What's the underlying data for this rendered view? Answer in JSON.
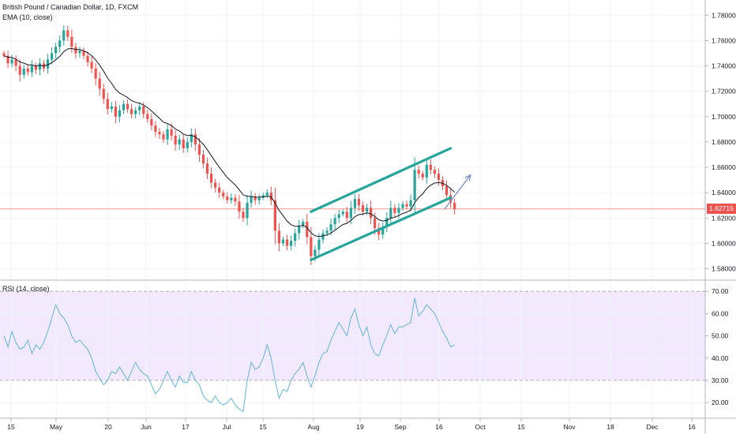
{
  "main_panel": {
    "symbol_title": "British Pound / Canadian Dollar, 1D, FXCM",
    "indicator_label": "EMA (10, close)",
    "last_price_label": "1.62715"
  },
  "rsi_panel": {
    "indicator_label": "RSI (14, close)"
  },
  "colors": {
    "bull": "#26a69a",
    "bear": "#ef5350",
    "ema": "#131722",
    "channel": "#26a69a",
    "arrow": "#7e8fc8",
    "rsi_line": "#5fb6d6",
    "rsi_band": "#f3e9ff",
    "price_line": "#ef5350"
  },
  "chart_data": [
    {
      "type": "candlestick",
      "title": "British Pound / Canadian Dollar, 1D, FXCM",
      "x_tick_labels": [
        "15",
        "May",
        "20",
        "Jun",
        "17",
        "Jul",
        "15",
        "Aug",
        "19",
        "Sep",
        "16",
        "Oct",
        "15",
        "Nov",
        "18",
        "Dec",
        "16"
      ],
      "y_tick_labels": [
        "1.78000",
        "1.76000",
        "1.74000",
        "1.72000",
        "1.70000",
        "1.68000",
        "1.66000",
        "1.64000",
        "1.62000",
        "1.60000",
        "1.58000"
      ],
      "ylim": [
        1.571,
        1.792
      ],
      "last_price": 1.62715,
      "closes": [
        1.748,
        1.742,
        1.745,
        1.74,
        1.733,
        1.738,
        1.735,
        1.74,
        1.737,
        1.742,
        1.738,
        1.745,
        1.75,
        1.755,
        1.76,
        1.768,
        1.763,
        1.755,
        1.75,
        1.752,
        1.748,
        1.743,
        1.738,
        1.73,
        1.722,
        1.714,
        1.706,
        1.708,
        1.7,
        1.705,
        1.71,
        1.706,
        1.702,
        1.705,
        1.708,
        1.702,
        1.698,
        1.693,
        1.688,
        1.686,
        1.682,
        1.69,
        1.685,
        1.678,
        1.682,
        1.675,
        1.68,
        1.686,
        1.678,
        1.67,
        1.663,
        1.655,
        1.648,
        1.644,
        1.64,
        1.637,
        1.634,
        1.636,
        1.633,
        1.625,
        1.62,
        1.632,
        1.637,
        1.634,
        1.636,
        1.638,
        1.64,
        1.634,
        1.61,
        1.6,
        1.603,
        1.598,
        1.602,
        1.608,
        1.614,
        1.617,
        1.605,
        1.59,
        1.595,
        1.603,
        1.608,
        1.61,
        1.615,
        1.62,
        1.623,
        1.625,
        1.62,
        1.628,
        1.635,
        1.63,
        1.625,
        1.628,
        1.62,
        1.612,
        1.607,
        1.613,
        1.62,
        1.628,
        1.624,
        1.628,
        1.631,
        1.629,
        1.634,
        1.658,
        1.655,
        1.652,
        1.662,
        1.658,
        1.655,
        1.65,
        1.645,
        1.638,
        1.632,
        1.627
      ],
      "series": [
        {
          "name": "EMA (10, close)",
          "note": "computed from closes"
        }
      ],
      "annotations": [
        {
          "type": "channel-upper",
          "points": [
            [
              77,
              1.625
            ],
            [
              112,
              1.675
            ]
          ]
        },
        {
          "type": "channel-lower",
          "points": [
            [
              77,
              1.587
            ],
            [
              112,
              1.636
            ]
          ]
        },
        {
          "type": "arrow",
          "points": [
            [
              110.5,
              1.627
            ],
            [
              117,
              1.654
            ]
          ]
        }
      ]
    },
    {
      "type": "line",
      "title": "RSI (14, close)",
      "y_tick_labels": [
        "70.00",
        "60.00",
        "50.00",
        "40.00",
        "30.00",
        "20.00"
      ],
      "ylim": [
        13,
        75
      ],
      "band": [
        30,
        70
      ],
      "series": [
        {
          "name": "RSI (14, close)",
          "values": [
            50,
            45,
            52,
            47,
            44,
            45,
            48,
            42,
            46,
            44,
            47,
            52,
            58,
            64,
            60,
            58,
            55,
            50,
            47,
            48,
            46,
            44,
            40,
            34,
            31,
            28,
            30,
            34,
            33,
            36,
            33,
            30,
            34,
            38,
            35,
            33,
            32,
            28,
            24,
            26,
            30,
            34,
            30,
            27,
            32,
            29,
            29,
            34,
            30,
            28,
            23,
            21,
            20,
            23,
            20,
            19,
            20,
            22,
            19,
            17,
            16,
            30,
            38,
            35,
            36,
            40,
            46,
            40,
            30,
            22,
            26,
            25,
            30,
            33,
            35,
            38,
            32,
            27,
            32,
            38,
            42,
            43,
            48,
            52,
            56,
            53,
            50,
            58,
            62,
            55,
            50,
            54,
            46,
            42,
            41,
            46,
            50,
            55,
            51,
            54,
            54,
            55,
            56,
            67,
            59,
            61,
            64,
            62,
            60,
            56,
            52,
            49,
            45,
            46
          ]
        }
      ]
    }
  ]
}
